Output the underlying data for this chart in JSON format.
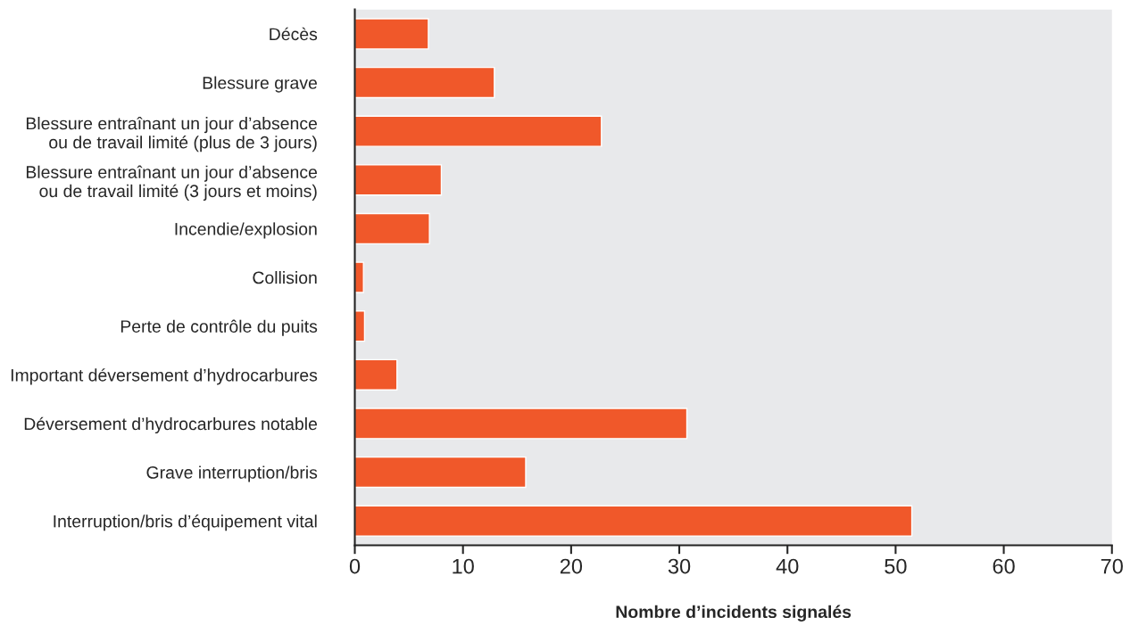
{
  "chart_data": {
    "type": "bar",
    "orientation": "horizontal",
    "xlabel": "Nombre d’incidents signalés",
    "categories": [
      "Décès",
      "Blessure grave",
      "Blessure entraînant un jour d’absence\nou de travail limité (plus de 3 jours)",
      "Blessure entraînant un jour d’absence\nou de travail limité (3 jours et moins)",
      "Incendie/explosion",
      "Collision",
      "Perte de contrôle du puits",
      "Important déversement d’hydrocarbures",
      "Déversement d’hydrocarbures notable",
      "Grave interruption/bris",
      "Interruption/bris d’équipement vital"
    ],
    "values": [
      6.8,
      12.9,
      22.8,
      8,
      6.9,
      0.8,
      0.9,
      3.9,
      30.7,
      15.8,
      51.5
    ],
    "color": "#f0582a",
    "xlim": [
      0,
      70
    ],
    "xticks": [
      0,
      10,
      20,
      30,
      40,
      50,
      60,
      70
    ],
    "grid": false,
    "legend": false
  }
}
